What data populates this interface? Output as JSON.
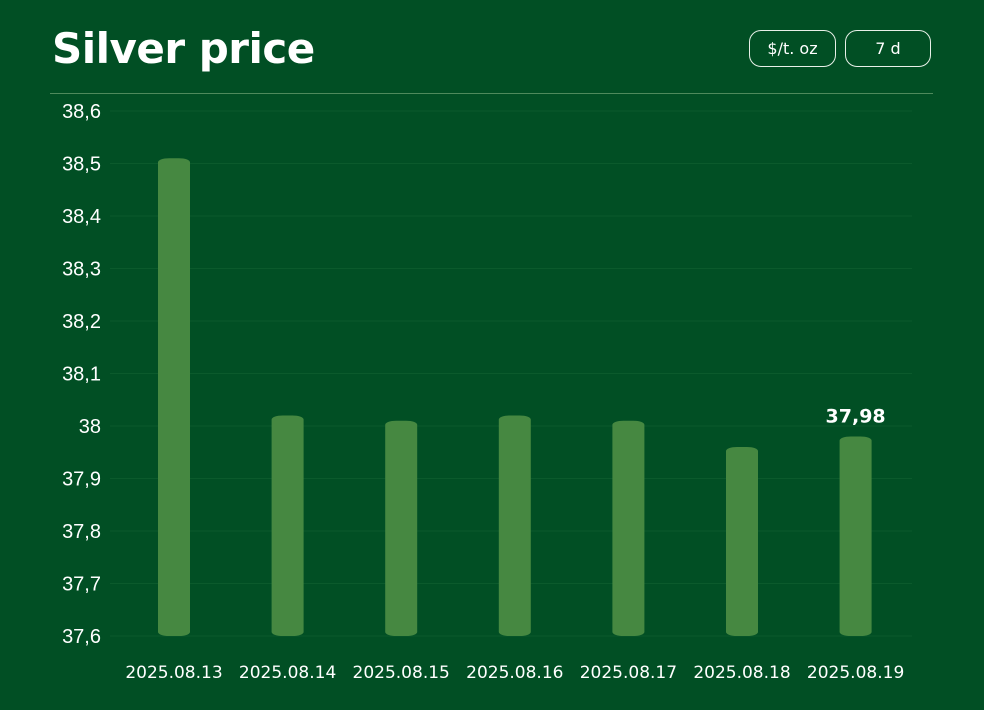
{
  "header": {
    "title": "Silver price",
    "unit_button": "$/t. oz",
    "range_button": "7 d"
  },
  "colors": {
    "background": "#014f24",
    "bar": "#468841",
    "grid": "#0b5a2c",
    "text": "#ffffff"
  },
  "chart_data": {
    "type": "bar",
    "title": "Silver price",
    "xlabel": "",
    "ylabel": "",
    "categories": [
      "2025.08.13",
      "2025.08.14",
      "2025.08.15",
      "2025.08.16",
      "2025.08.17",
      "2025.08.18",
      "2025.08.19"
    ],
    "values": [
      38.51,
      38.02,
      38.01,
      38.02,
      38.01,
      37.96,
      37.98
    ],
    "ylim": [
      37.6,
      38.6
    ],
    "yticks": [
      38.6,
      38.5,
      38.4,
      38.3,
      38.2,
      38.1,
      38.0,
      37.9,
      37.8,
      37.7,
      37.6
    ],
    "ytick_labels": [
      "38,6",
      "38,5",
      "38,4",
      "38,3",
      "38,2",
      "38,1",
      "38",
      "37,9",
      "37,8",
      "37,7",
      "37,6"
    ],
    "annotations": [
      {
        "category": "2025.08.19",
        "text": "37,98"
      }
    ],
    "grid": true,
    "legend": "none"
  }
}
